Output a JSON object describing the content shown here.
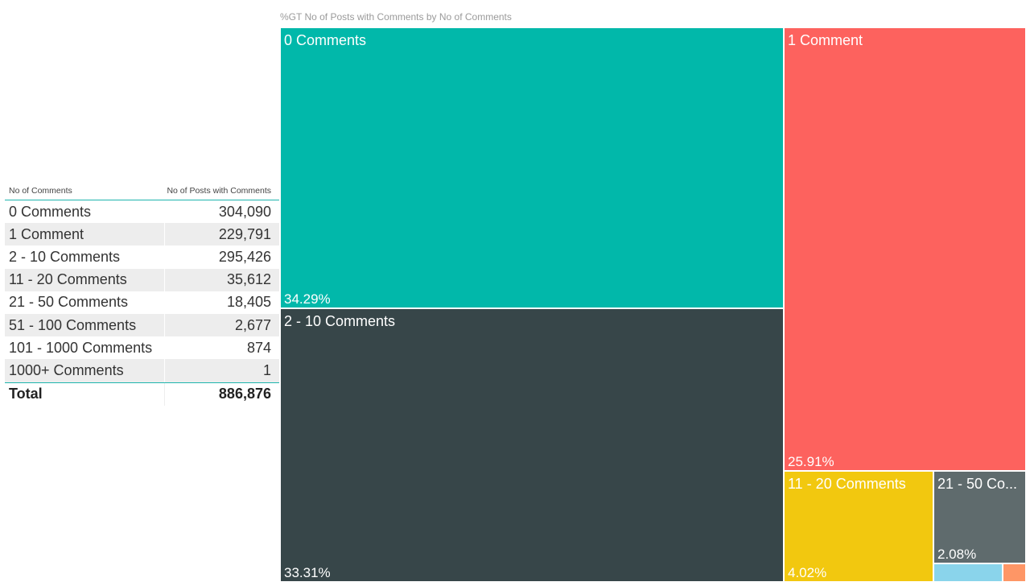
{
  "table": {
    "headers": [
      "No of Comments",
      "No of Posts with Comments"
    ],
    "rows": [
      [
        "0 Comments",
        "304,090"
      ],
      [
        "1 Comment",
        "229,791"
      ],
      [
        "2 - 10 Comments",
        "295,426"
      ],
      [
        "11 - 20 Comments",
        "35,612"
      ],
      [
        "21 - 50 Comments",
        "18,405"
      ],
      [
        "51 - 100 Comments",
        "2,677"
      ],
      [
        "101 - 1000 Comments",
        "874"
      ],
      [
        "1000+ Comments",
        "1"
      ]
    ],
    "total": [
      "Total",
      "886,876"
    ]
  },
  "treemap": {
    "title": "%GT No of Posts with Comments by No of Comments"
  },
  "chart_data": {
    "type": "treemap",
    "title": "%GT No of Posts with Comments by No of Comments",
    "categories": [
      "0 Comments",
      "1 Comment",
      "2 - 10 Comments",
      "11 - 20 Comments",
      "21 - 50 Comments",
      "51 - 100 Comments",
      "101 - 1000 Comments",
      "1000+ Comments"
    ],
    "values": [
      304090,
      229791,
      295426,
      35612,
      18405,
      2677,
      874,
      1
    ],
    "display_labels": [
      "0 Comments",
      "1 Comment",
      "2 - 10 Comments",
      "11 - 20 Comments",
      "21 - 50 Co...",
      "",
      "",
      ""
    ],
    "percent_labels": [
      "34.29%",
      "25.91%",
      "33.31%",
      "4.02%",
      "2.08%",
      "",
      "",
      ""
    ],
    "colors": [
      "#01b8aa",
      "#fd625e",
      "#374649",
      "#f2c80f",
      "#5f6b6d",
      "#8ad4eb",
      "#fe9666",
      "#a66999"
    ]
  }
}
